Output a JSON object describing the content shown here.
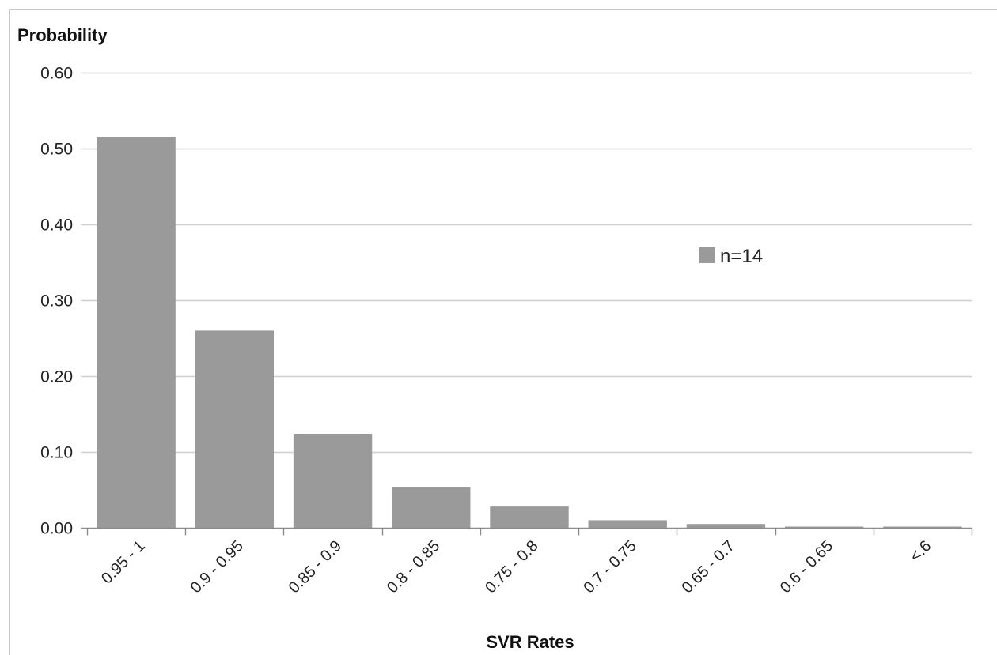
{
  "chart_data": {
    "type": "bar",
    "title": "",
    "ylabel": "Probability",
    "xlabel": "SVR Rates",
    "categories": [
      "0.95 - 1",
      "0.9 - 0.95",
      "0.85 - 0.9",
      "0.8 - 0.85",
      "0.75 - 0.8",
      "0.7 - 0.75",
      "0.65 - 0.7",
      "0.6 - 0.65",
      "<.6"
    ],
    "series": [
      {
        "name": "n=14",
        "color": "#9a9a9a",
        "values": [
          0.515,
          0.26,
          0.124,
          0.054,
          0.028,
          0.01,
          0.005,
          0.001,
          0.001
        ]
      }
    ],
    "ylim": [
      0,
      0.6
    ],
    "yticks": [
      "0.00",
      "0.10",
      "0.20",
      "0.30",
      "0.40",
      "0.50",
      "0.60"
    ],
    "grid": true,
    "legend_position": "right"
  }
}
